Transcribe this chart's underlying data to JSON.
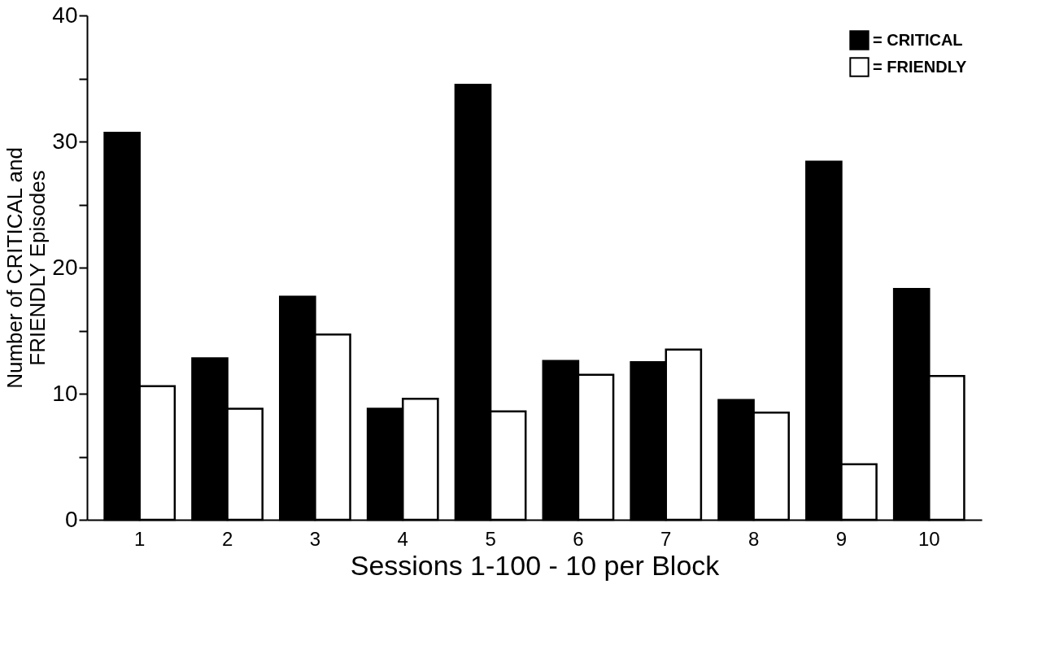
{
  "chart_data": {
    "type": "bar",
    "xlabel": "Sessions 1-100 - 10 per Block",
    "ylabel": "Number of CRITICAL and\nFRIENDLY Episodes",
    "categories": [
      "1",
      "2",
      "3",
      "4",
      "5",
      "6",
      "7",
      "8",
      "9",
      "10"
    ],
    "series": [
      {
        "name": "= CRITICAL",
        "color": "#000000",
        "values": [
          30.7,
          12.8,
          17.7,
          8.8,
          34.5,
          12.6,
          12.5,
          9.5,
          28.4,
          18.3
        ]
      },
      {
        "name": "= FRIENDLY",
        "color": "#ffffff",
        "values": [
          10.6,
          8.8,
          14.7,
          9.6,
          8.6,
          11.5,
          13.5,
          8.5,
          4.4,
          11.4
        ]
      }
    ],
    "ylim": [
      0,
      40
    ],
    "yticks": [
      0,
      {
        "value": 5,
        "label": null
      },
      10,
      {
        "value": 15,
        "label": null
      },
      20,
      {
        "value": 25,
        "label": null
      },
      30,
      {
        "value": 35,
        "label": null
      },
      40
    ],
    "grid": false,
    "legend": "top right"
  }
}
